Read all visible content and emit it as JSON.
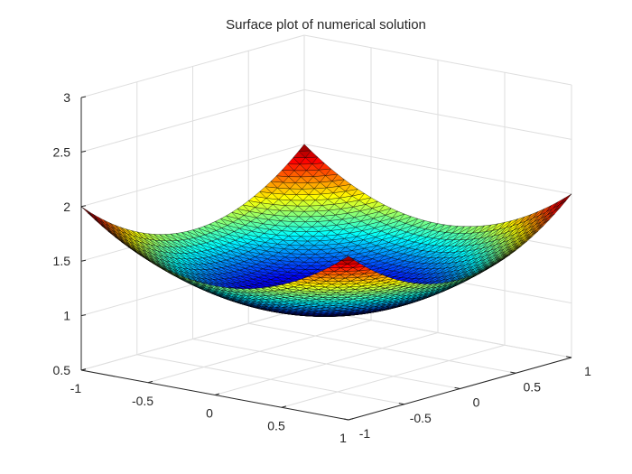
{
  "chart_data": {
    "type": "surface",
    "title": "Surface plot of numerical solution",
    "xlabel": "",
    "ylabel": "",
    "zlabel": "",
    "xlim": [
      -1,
      1
    ],
    "ylim": [
      -1,
      1
    ],
    "zlim": [
      0.5,
      3
    ],
    "x_ticks": [
      "-1",
      "-0.5",
      "0",
      "0.5",
      "1"
    ],
    "y_ticks": [
      "-1",
      "-0.5",
      "0",
      "0.5",
      "1"
    ],
    "z_ticks": [
      "0.5",
      "1",
      "1.5",
      "2",
      "2.5",
      "3"
    ],
    "grid": true,
    "box": false,
    "colormap": "jet",
    "edge_color": "#000000",
    "surface": {
      "formula": "1 + (x^2 + y^2) / 2",
      "domain": "unit square [-1,1] x [-1,1], triangular mesh",
      "grid_size": 41,
      "samples": [
        {
          "x": -1,
          "y": -1,
          "z": 2
        },
        {
          "x": 1,
          "y": -1,
          "z": 2
        },
        {
          "x": -1,
          "y": 1,
          "z": 2
        },
        {
          "x": 1,
          "y": 1,
          "z": 2
        },
        {
          "x": 0,
          "y": 0,
          "z": 1
        },
        {
          "x": 0,
          "y": -1,
          "z": 1.5
        },
        {
          "x": 0,
          "y": 1,
          "z": 1.5
        },
        {
          "x": -1,
          "y": 0,
          "z": 1.5
        },
        {
          "x": 1,
          "y": 0,
          "z": 1.5
        }
      ]
    }
  }
}
